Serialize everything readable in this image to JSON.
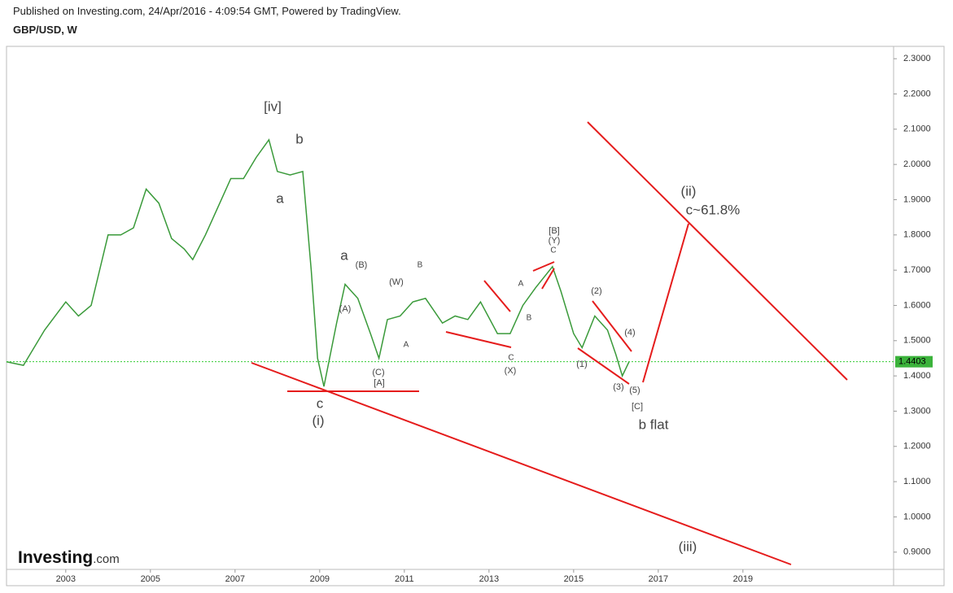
{
  "header": {
    "published": "Published on Investing.com, 24/Apr/2016 - 4:09:54 GMT, Powered by TradingView.",
    "symbol": "GBP/USD, W"
  },
  "logo": {
    "main": "Investing",
    "suffix": ".com"
  },
  "chart_data": {
    "type": "line",
    "title": "GBP/USD, W",
    "x": [
      2001.6,
      2002.0,
      2002.5,
      2003.0,
      2003.3,
      2003.6,
      2004.0,
      2004.3,
      2004.6,
      2004.9,
      2005.2,
      2005.5,
      2005.8,
      2006.0,
      2006.3,
      2006.6,
      2006.9,
      2007.2,
      2007.5,
      2007.8,
      2008.0,
      2008.3,
      2008.6,
      2008.8,
      2008.95,
      2009.1,
      2009.4,
      2009.6,
      2009.9,
      2010.2,
      2010.4,
      2010.6,
      2010.9,
      2011.2,
      2011.5,
      2011.9,
      2012.2,
      2012.5,
      2012.8,
      2013.2,
      2013.5,
      2013.8,
      2014.1,
      2014.5,
      2014.7,
      2015.0,
      2015.2,
      2015.5,
      2015.8,
      2016.0,
      2016.15,
      2016.31
    ],
    "series": [
      {
        "name": "GBP/USD",
        "color": "#3a9a3a",
        "values": [
          1.44,
          1.43,
          1.53,
          1.61,
          1.57,
          1.6,
          1.8,
          1.8,
          1.82,
          1.93,
          1.89,
          1.79,
          1.76,
          1.73,
          1.8,
          1.88,
          1.96,
          1.96,
          2.02,
          2.07,
          1.98,
          1.97,
          1.98,
          1.7,
          1.45,
          1.37,
          1.55,
          1.66,
          1.62,
          1.52,
          1.45,
          1.56,
          1.57,
          1.61,
          1.62,
          1.55,
          1.57,
          1.56,
          1.61,
          1.52,
          1.52,
          1.6,
          1.65,
          1.71,
          1.64,
          1.52,
          1.48,
          1.57,
          1.53,
          1.46,
          1.4,
          1.4403
        ]
      }
    ],
    "last_price": 1.4403,
    "xlim": [
      2001.6,
      2022.56
    ],
    "xticks": [
      2003,
      2005,
      2007,
      2009,
      2011,
      2013,
      2015,
      2017,
      2019
    ],
    "ylim": [
      0.851,
      2.335
    ],
    "yticks": [
      {
        "value": 0.9,
        "label": "0.9000"
      },
      {
        "value": 1.0,
        "label": "1.0000"
      },
      {
        "value": 1.1,
        "label": "1.1000"
      },
      {
        "value": 1.2,
        "label": "1.2000"
      },
      {
        "value": 1.3,
        "label": "1.3000"
      },
      {
        "value": 1.4,
        "label": "1.4000"
      },
      {
        "value": 1.5,
        "label": "1.5000"
      },
      {
        "value": 1.6,
        "label": "1.6000"
      },
      {
        "value": 1.7,
        "label": "1.7000"
      },
      {
        "value": 1.8,
        "label": "1.8000"
      },
      {
        "value": 1.9,
        "label": "1.9000"
      },
      {
        "value": 2.0,
        "label": "2.0000"
      },
      {
        "value": 2.1,
        "label": "2.1000"
      },
      {
        "value": 2.2,
        "label": "2.2000"
      },
      {
        "value": 2.3,
        "label": "2.3000"
      }
    ],
    "annotations": [
      "[iv]",
      "b",
      "a",
      "a",
      "(B)",
      "(A)",
      "(W)",
      "B",
      "A",
      "(C)",
      "[A]",
      "c",
      "(i)",
      "[B]",
      "(Y)",
      "C",
      "A",
      "B",
      "C",
      "(X)",
      "(2)",
      "(4)",
      "(1)",
      "(3)",
      "(5)",
      "[C]",
      "b flat",
      "(ii)",
      "c~61.8%",
      "(iii)"
    ]
  }
}
